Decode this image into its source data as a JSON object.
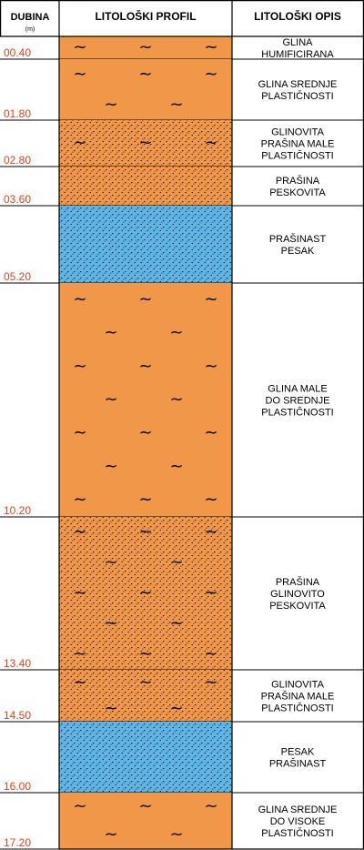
{
  "header": {
    "depth_title": "DUBINA",
    "depth_unit": "(m)",
    "profile_title": "LITOLOŠKI PROFIL",
    "description_title": "LITOLOŠKI OPIS"
  },
  "colors": {
    "clay": "#f0974a",
    "sand": "#5fb6e6",
    "depth_text": "#e2411c",
    "border": "#000000"
  },
  "layers": [
    {
      "depth": "00.40",
      "top": 0.0,
      "bottom": 0.4,
      "lithology": "clay",
      "description": [
        "GLINA",
        "HUMIFICIRANA"
      ]
    },
    {
      "depth": "01.80",
      "top": 0.4,
      "bottom": 1.8,
      "lithology": "clay",
      "description": [
        "GLINA SREDNJE",
        "PLASTIČNOSTI"
      ]
    },
    {
      "depth": "02.80",
      "top": 1.8,
      "bottom": 2.8,
      "lithology": "silty-clay",
      "description": [
        "GLINOVITA",
        "PRAŠINA MALE",
        "PLASTIČNOSTI"
      ]
    },
    {
      "depth": "03.60",
      "top": 2.8,
      "bottom": 3.6,
      "lithology": "silt",
      "description": [
        "PRAŠINA",
        "PESKOVITA"
      ]
    },
    {
      "depth": "05.20",
      "top": 3.6,
      "bottom": 5.2,
      "lithology": "sand",
      "description": [
        "PRAŠINAST",
        "PESAK"
      ]
    },
    {
      "depth": "10.20",
      "top": 5.2,
      "bottom": 10.2,
      "lithology": "clay",
      "description": [
        "GLINA MALE",
        "DO SREDNJE",
        "PLASTIČNOSTI"
      ]
    },
    {
      "depth": "13.40",
      "top": 10.2,
      "bottom": 13.4,
      "lithology": "silty-clay",
      "description": [
        "PRAŠINA",
        "GLINOVITO",
        "PESKOVITA"
      ]
    },
    {
      "depth": "14.50",
      "top": 13.4,
      "bottom": 14.5,
      "lithology": "silty-clay",
      "description": [
        "GLINOVITA",
        "PRAŠINA MALE",
        "PLASTIČNOSTI"
      ]
    },
    {
      "depth": "16.00",
      "top": 14.5,
      "bottom": 16.0,
      "lithology": "sand",
      "description": [
        "PESAK",
        "PRAŠINAST"
      ]
    },
    {
      "depth": "17.20",
      "top": 16.0,
      "bottom": 17.2,
      "lithology": "clay",
      "description": [
        "GLINA SREDNJE",
        "DO VISOKE",
        "PLASTIČNOSTI"
      ]
    }
  ]
}
